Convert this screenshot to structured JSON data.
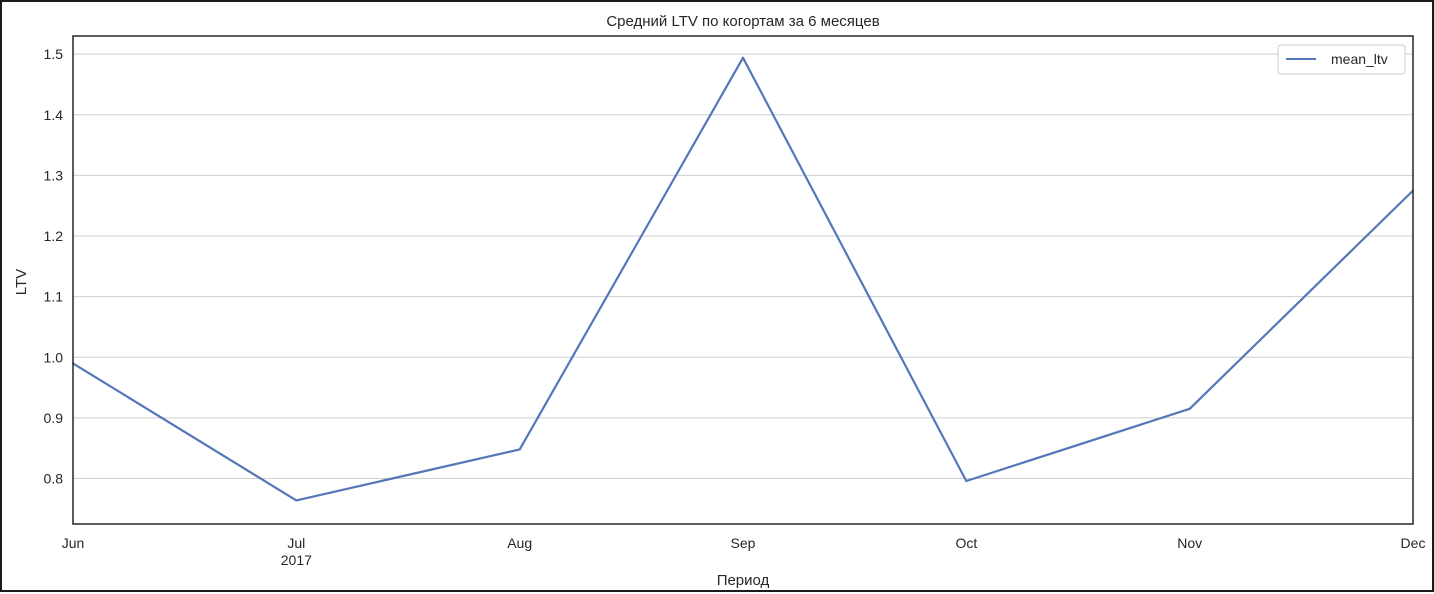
{
  "chart_data": {
    "type": "line",
    "title": "Средний LTV по когортам за 6 месяцев",
    "xlabel": "Период",
    "ylabel": "LTV",
    "categories": [
      "Jun",
      "Jul",
      "Aug",
      "Sep",
      "Oct",
      "Nov",
      "Dec"
    ],
    "x_sublabels": [
      "",
      "2017",
      "",
      "",
      "",
      "",
      ""
    ],
    "y_ticks": [
      "0.8",
      "0.9",
      "1.0",
      "1.1",
      "1.2",
      "1.3",
      "1.4",
      "1.5"
    ],
    "ylim": [
      0.725,
      1.53
    ],
    "series": [
      {
        "name": "mean_ltv",
        "color": "#5577b8",
        "values": [
          0.99,
          0.764,
          0.848,
          1.494,
          0.796,
          0.915,
          1.275
        ]
      }
    ],
    "grid": "horizontal",
    "legend_position": "top-right"
  }
}
